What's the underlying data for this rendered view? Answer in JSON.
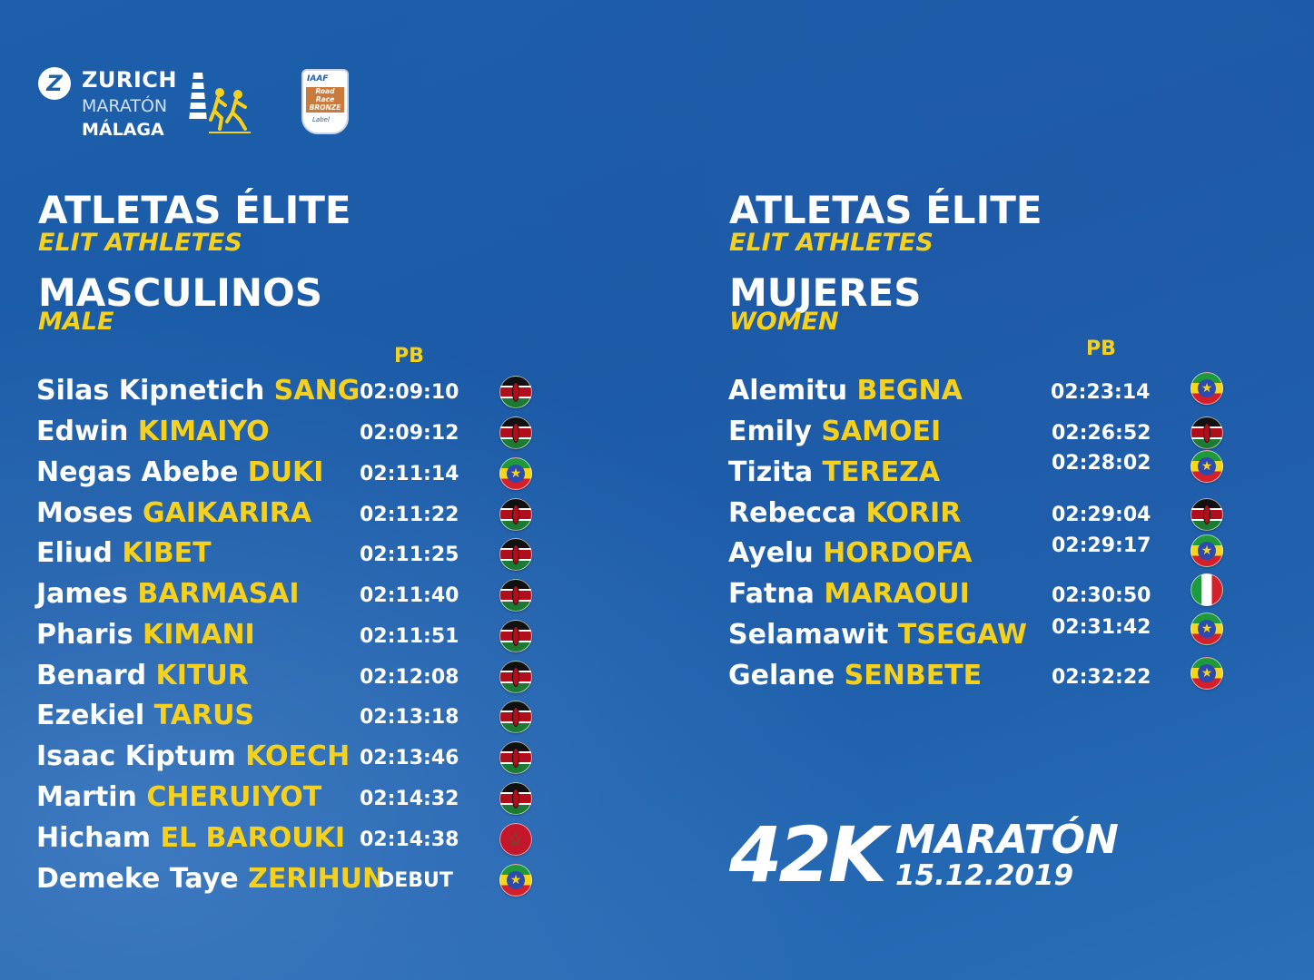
{
  "logo": {
    "zurich_letter": "Z",
    "zurich_word": "ZURICH",
    "line1": "MARATÓN",
    "line2": "MÁLAGA",
    "iaaf_top": "IAAF",
    "iaaf_mid": "Road Race BRONZE",
    "iaaf_bot": "Label"
  },
  "left": {
    "title": "ATLETAS ÉLITE",
    "title_en": "ELIT ATHLETES",
    "category": "MASCULINOS",
    "category_en": "MALE",
    "pb_label": "PB",
    "athletes": [
      {
        "first": "Silas Kipnetich ",
        "last": "SANG",
        "pb": "02:09:10",
        "flag": "kenya"
      },
      {
        "first": "Edwin ",
        "last": "KIMAIYO",
        "pb": "02:09:12",
        "flag": "kenya"
      },
      {
        "first": "Negas Abebe ",
        "last": "DUKI",
        "pb": "02:11:14",
        "flag": "ethiopia"
      },
      {
        "first": "Moses ",
        "last": "GAIKARIRA",
        "pb": "02:11:22",
        "flag": "kenya"
      },
      {
        "first": "Eliud ",
        "last": "KIBET",
        "pb": "02:11:25",
        "flag": "kenya"
      },
      {
        "first": "James ",
        "last": "BARMASAI",
        "pb": "02:11:40",
        "flag": "kenya"
      },
      {
        "first": "Pharis ",
        "last": "KIMANI",
        "pb": "02:11:51",
        "flag": "kenya"
      },
      {
        "first": "Benard ",
        "last": "KITUR",
        "pb": "02:12:08",
        "flag": "kenya"
      },
      {
        "first": "Ezekiel ",
        "last": "TARUS",
        "pb": "02:13:18",
        "flag": "kenya"
      },
      {
        "first": "Isaac Kiptum ",
        "last": "KOECH",
        "pb": "02:13:46",
        "flag": "kenya"
      },
      {
        "first": "Martin ",
        "last": "CHERUIYOT",
        "pb": "02:14:32",
        "flag": "kenya"
      },
      {
        "first": "Hicham ",
        "last": "EL BAROUKI",
        "pb": "02:14:38",
        "flag": "morocco"
      },
      {
        "first": "Demeke Taye ",
        "last": "ZERIHUN",
        "pb": "DEBUT",
        "flag": "ethiopia"
      }
    ]
  },
  "right": {
    "title": "ATLETAS ÉLITE",
    "title_en": "ELIT ATHLETES",
    "category": "MUJERES",
    "category_en": "WOMEN",
    "pb_label": "PB",
    "athletes": [
      {
        "first": "Alemitu ",
        "last": "BEGNA",
        "pb": "02:23:14",
        "flag": "ethiopia"
      },
      {
        "first": "Emily ",
        "last": "SAMOEI",
        "pb": "02:26:52",
        "flag": "kenya"
      },
      {
        "first": "Tizita ",
        "last": "TEREZA",
        "pb": "02:28:02",
        "flag": "ethiopia"
      },
      {
        "first": "Rebecca ",
        "last": "KORIR",
        "pb": "02:29:04",
        "flag": "kenya"
      },
      {
        "first": "Ayelu ",
        "last": "HORDOFA",
        "pb": "02:29:17",
        "flag": "ethiopia"
      },
      {
        "first": "Fatna ",
        "last": "MARAOUI",
        "pb": "02:30:50",
        "flag": "italy"
      },
      {
        "first": "Selamawit ",
        "last": "TSEGAW",
        "pb": "02:31:42",
        "flag": "ethiopia"
      },
      {
        "first": "Gelane ",
        "last": "SENBETE",
        "pb": "02:32:22",
        "flag": "ethiopia"
      }
    ]
  },
  "race": {
    "distance": "42K",
    "name": "MARATÓN",
    "date": "15.12.2019"
  },
  "colors": {
    "background": "#1d5fab",
    "accent_yellow": "#f5d11e",
    "text": "#ffffff"
  }
}
